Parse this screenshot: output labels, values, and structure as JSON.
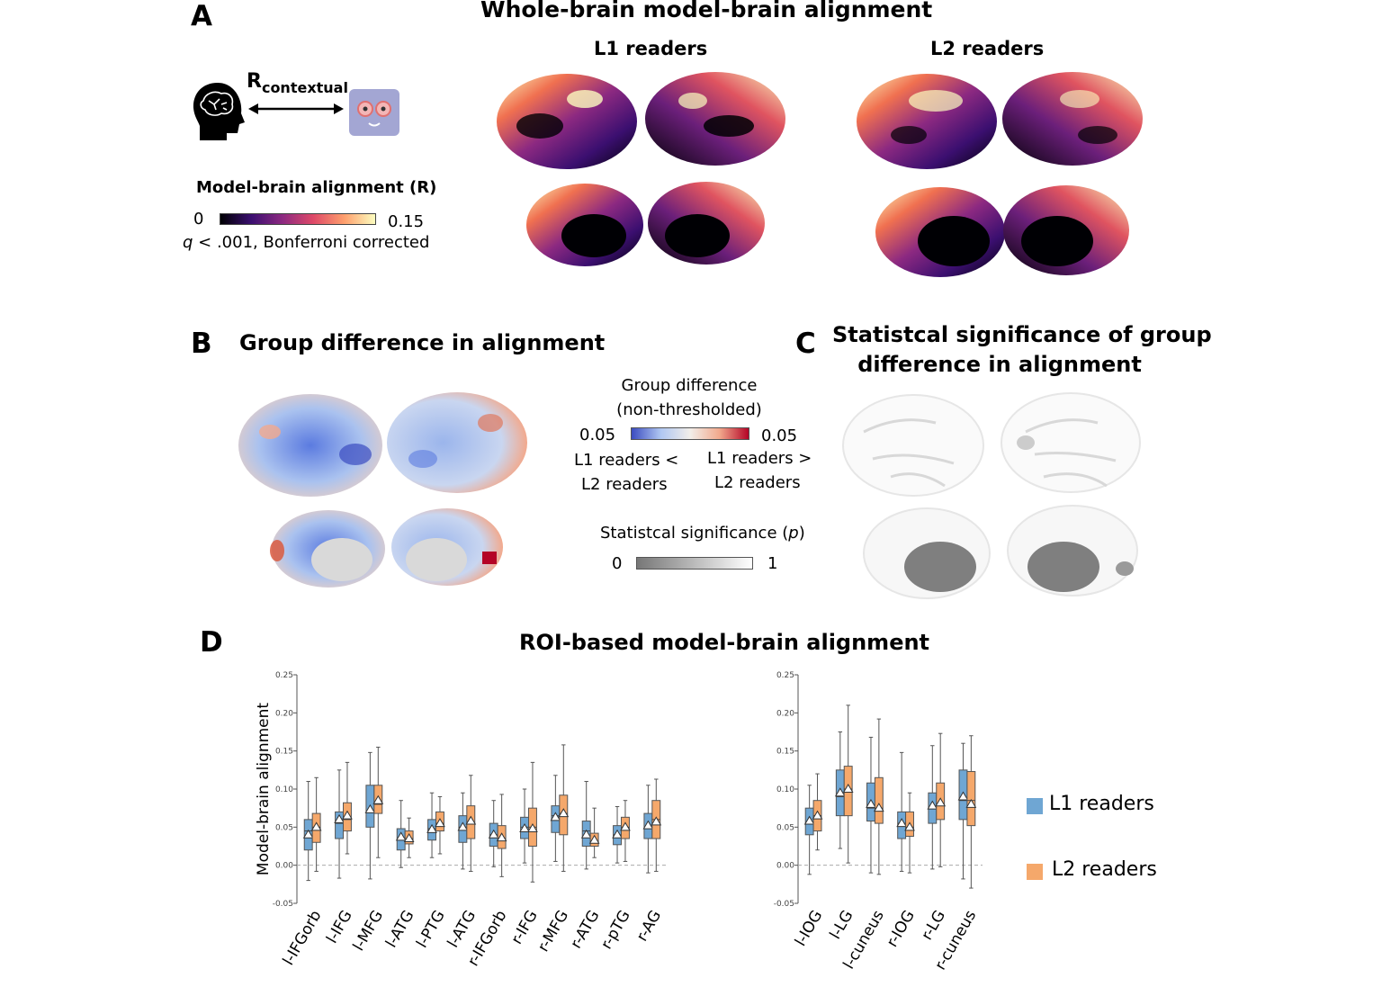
{
  "panelA": {
    "letter": "A",
    "title": "Whole-brain model-brain alignment",
    "group1": "L1 readers",
    "group2": "L2 readers",
    "r_main": "R",
    "r_sub": "contextual",
    "colorbar_title": "Model-brain alignment (R)",
    "colorbar_min": "0",
    "colorbar_max": "0.15",
    "threshold_q": "q",
    "threshold_rest": " < .001, Bonferroni corrected",
    "cmap_colors": [
      "#000004",
      "#3b0f70",
      "#8c2981",
      "#de4968",
      "#fe9f6d",
      "#fcfdbf"
    ]
  },
  "panelB": {
    "letter": "B",
    "title": "Group difference in alignment",
    "legend_title_1": "Group difference",
    "legend_title_2": "(non-thresholded)",
    "legend_left_val": "0.05",
    "legend_right_val": "0.05",
    "left_label_1": "L1 readers <",
    "left_label_2": "L2 readers",
    "right_label_1": "L1 readers >",
    "right_label_2": "L2 readers",
    "sig_title": "Statistcal significance (",
    "sig_p": "p",
    "sig_close": ")",
    "sig_min": "0",
    "sig_max": "1",
    "diff_colors": [
      "#3b4cc0",
      "#b0c7f2",
      "#f2eee9",
      "#f2a98d",
      "#b40426"
    ]
  },
  "panelC": {
    "letter": "C",
    "title_1": "Statistcal significance of group",
    "title_2": "difference in alignment"
  },
  "panelD": {
    "letter": "D",
    "title": "ROI-based model-brain alignment"
  },
  "chart_data": [
    {
      "type": "box",
      "title": "",
      "ylabel": "Model-brain alignment",
      "ylim": [
        -0.05,
        0.25
      ],
      "yticks": [
        "-0.05",
        "0.00",
        "0.05",
        "0.10",
        "0.15",
        "0.20",
        "0.25"
      ],
      "reference_line": 0.0,
      "categories": [
        "l-IFGorb",
        "l-IFG",
        "l-MFG",
        "l-ATG",
        "l-PTG",
        "l-ATG",
        "r-IFGorb",
        "r-IFG",
        "r-MFG",
        "r-ATG",
        "r-pTG",
        "r-AG"
      ],
      "series": [
        {
          "name": "L1 readers",
          "color": "#6fa6d3",
          "boxes": [
            {
              "whislo": -0.02,
              "q1": 0.02,
              "med": 0.045,
              "q3": 0.06,
              "whishi": 0.11,
              "mean": 0.04
            },
            {
              "whislo": -0.017,
              "q1": 0.035,
              "med": 0.055,
              "q3": 0.07,
              "whishi": 0.125,
              "mean": 0.06
            },
            {
              "whislo": -0.018,
              "q1": 0.05,
              "med": 0.07,
              "q3": 0.105,
              "whishi": 0.148,
              "mean": 0.073
            },
            {
              "whislo": -0.003,
              "q1": 0.02,
              "med": 0.035,
              "q3": 0.048,
              "whishi": 0.085,
              "mean": 0.037
            },
            {
              "whislo": 0.01,
              "q1": 0.033,
              "med": 0.048,
              "q3": 0.06,
              "whishi": 0.095,
              "mean": 0.047
            },
            {
              "whislo": -0.005,
              "q1": 0.03,
              "med": 0.05,
              "q3": 0.065,
              "whishi": 0.095,
              "mean": 0.05
            },
            {
              "whislo": -0.002,
              "q1": 0.025,
              "med": 0.04,
              "q3": 0.055,
              "whishi": 0.085,
              "mean": 0.04
            },
            {
              "whislo": 0.003,
              "q1": 0.035,
              "med": 0.05,
              "q3": 0.063,
              "whishi": 0.1,
              "mean": 0.048
            },
            {
              "whislo": 0.005,
              "q1": 0.043,
              "med": 0.065,
              "q3": 0.078,
              "whishi": 0.118,
              "mean": 0.063
            },
            {
              "whislo": -0.005,
              "q1": 0.025,
              "med": 0.045,
              "q3": 0.058,
              "whishi": 0.11,
              "mean": 0.04
            },
            {
              "whislo": 0.003,
              "q1": 0.027,
              "med": 0.04,
              "q3": 0.052,
              "whishi": 0.077,
              "mean": 0.04
            },
            {
              "whislo": -0.01,
              "q1": 0.035,
              "med": 0.05,
              "q3": 0.068,
              "whishi": 0.105,
              "mean": 0.052
            }
          ]
        },
        {
          "name": "L2 readers",
          "color": "#f5a86b",
          "boxes": [
            {
              "whislo": -0.008,
              "q1": 0.03,
              "med": 0.05,
              "q3": 0.068,
              "whishi": 0.115,
              "mean": 0.05
            },
            {
              "whislo": 0.015,
              "q1": 0.045,
              "med": 0.06,
              "q3": 0.082,
              "whishi": 0.135,
              "mean": 0.065
            },
            {
              "whislo": 0.01,
              "q1": 0.068,
              "med": 0.08,
              "q3": 0.105,
              "whishi": 0.155,
              "mean": 0.085
            },
            {
              "whislo": 0.01,
              "q1": 0.028,
              "med": 0.035,
              "q3": 0.045,
              "whishi": 0.062,
              "mean": 0.035
            },
            {
              "whislo": 0.015,
              "q1": 0.045,
              "med": 0.055,
              "q3": 0.07,
              "whishi": 0.09,
              "mean": 0.055
            },
            {
              "whislo": -0.008,
              "q1": 0.035,
              "med": 0.055,
              "q3": 0.078,
              "whishi": 0.118,
              "mean": 0.058
            },
            {
              "whislo": -0.015,
              "q1": 0.022,
              "med": 0.035,
              "q3": 0.052,
              "whishi": 0.093,
              "mean": 0.036
            },
            {
              "whislo": -0.022,
              "q1": 0.025,
              "med": 0.05,
              "q3": 0.075,
              "whishi": 0.135,
              "mean": 0.048
            },
            {
              "whislo": -0.008,
              "q1": 0.04,
              "med": 0.068,
              "q3": 0.092,
              "whishi": 0.158,
              "mean": 0.068
            },
            {
              "whislo": 0.01,
              "q1": 0.025,
              "med": 0.03,
              "q3": 0.042,
              "whishi": 0.075,
              "mean": 0.033
            },
            {
              "whislo": 0.005,
              "q1": 0.035,
              "med": 0.05,
              "q3": 0.063,
              "whishi": 0.085,
              "mean": 0.05
            },
            {
              "whislo": -0.008,
              "q1": 0.035,
              "med": 0.06,
              "q3": 0.085,
              "whishi": 0.113,
              "mean": 0.057
            }
          ]
        }
      ]
    },
    {
      "type": "box",
      "title": "",
      "ylabel": "",
      "ylim": [
        -0.05,
        0.25
      ],
      "yticks": [
        "-0.05",
        "0.00",
        "0.05",
        "0.10",
        "0.15",
        "0.20",
        "0.25"
      ],
      "reference_line": 0.0,
      "categories": [
        "l-IOG",
        "l-LG",
        "l-cuneus",
        "r-IOG",
        "r-LG",
        "r-cuneus"
      ],
      "series": [
        {
          "name": "L1 readers",
          "color": "#6fa6d3",
          "boxes": [
            {
              "whislo": -0.012,
              "q1": 0.04,
              "med": 0.055,
              "q3": 0.075,
              "whishi": 0.105,
              "mean": 0.058
            },
            {
              "whislo": 0.022,
              "q1": 0.065,
              "med": 0.09,
              "q3": 0.125,
              "whishi": 0.175,
              "mean": 0.095
            },
            {
              "whislo": -0.01,
              "q1": 0.058,
              "med": 0.075,
              "q3": 0.108,
              "whishi": 0.168,
              "mean": 0.08
            },
            {
              "whislo": -0.008,
              "q1": 0.035,
              "med": 0.055,
              "q3": 0.07,
              "whishi": 0.148,
              "mean": 0.055
            },
            {
              "whislo": -0.005,
              "q1": 0.055,
              "med": 0.075,
              "q3": 0.095,
              "whishi": 0.157,
              "mean": 0.078
            },
            {
              "whislo": -0.018,
              "q1": 0.06,
              "med": 0.085,
              "q3": 0.125,
              "whishi": 0.16,
              "mean": 0.09
            }
          ]
        },
        {
          "name": "L2 readers",
          "color": "#f5a86b",
          "boxes": [
            {
              "whislo": 0.02,
              "q1": 0.045,
              "med": 0.065,
              "q3": 0.085,
              "whishi": 0.12,
              "mean": 0.065
            },
            {
              "whislo": 0.003,
              "q1": 0.065,
              "med": 0.1,
              "q3": 0.13,
              "whishi": 0.21,
              "mean": 0.1
            },
            {
              "whislo": -0.012,
              "q1": 0.055,
              "med": 0.075,
              "q3": 0.115,
              "whishi": 0.192,
              "mean": 0.075
            },
            {
              "whislo": -0.01,
              "q1": 0.038,
              "med": 0.05,
              "q3": 0.07,
              "whishi": 0.095,
              "mean": 0.05
            },
            {
              "whislo": -0.002,
              "q1": 0.06,
              "med": 0.08,
              "q3": 0.108,
              "whishi": 0.173,
              "mean": 0.082
            },
            {
              "whislo": -0.03,
              "q1": 0.052,
              "med": 0.085,
              "q3": 0.123,
              "whishi": 0.17,
              "mean": 0.08
            }
          ]
        }
      ]
    }
  ]
}
